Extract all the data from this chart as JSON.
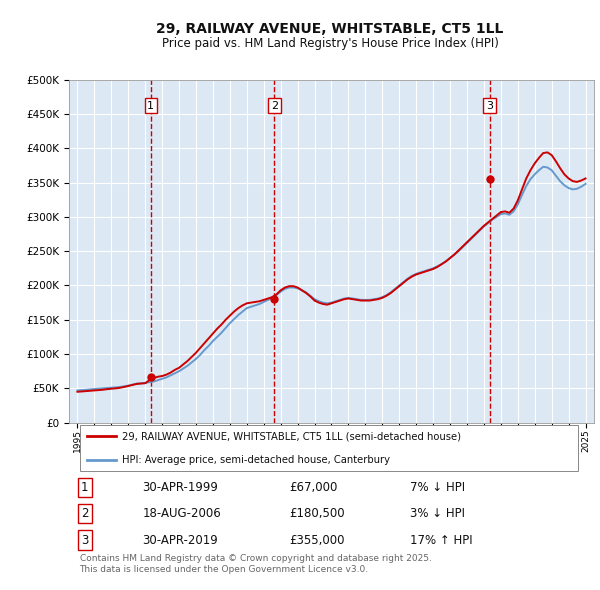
{
  "title1": "29, RAILWAY AVENUE, WHITSTABLE, CT5 1LL",
  "title2": "Price paid vs. HM Land Registry's House Price Index (HPI)",
  "legend_line1": "29, RAILWAY AVENUE, WHITSTABLE, CT5 1LL (semi-detached house)",
  "legend_line2": "HPI: Average price, semi-detached house, Canterbury",
  "footnote": "Contains HM Land Registry data © Crown copyright and database right 2025.\nThis data is licensed under the Open Government Licence v3.0.",
  "sale_dates": [
    1999.33,
    2006.63,
    2019.33
  ],
  "sale_prices": [
    67000,
    180500,
    355000
  ],
  "sale_labels": [
    "1",
    "2",
    "3"
  ],
  "sale_info": [
    [
      "1",
      "30-APR-1999",
      "£67,000",
      "7% ↓ HPI"
    ],
    [
      "2",
      "18-AUG-2006",
      "£180,500",
      "3% ↓ HPI"
    ],
    [
      "3",
      "30-APR-2019",
      "£355,000",
      "17% ↑ HPI"
    ]
  ],
  "hpi_years": [
    1995.0,
    1995.25,
    1995.5,
    1995.75,
    1996.0,
    1996.25,
    1996.5,
    1996.75,
    1997.0,
    1997.25,
    1997.5,
    1997.75,
    1998.0,
    1998.25,
    1998.5,
    1998.75,
    1999.0,
    1999.25,
    1999.5,
    1999.75,
    2000.0,
    2000.25,
    2000.5,
    2000.75,
    2001.0,
    2001.25,
    2001.5,
    2001.75,
    2002.0,
    2002.25,
    2002.5,
    2002.75,
    2003.0,
    2003.25,
    2003.5,
    2003.75,
    2004.0,
    2004.25,
    2004.5,
    2004.75,
    2005.0,
    2005.25,
    2005.5,
    2005.75,
    2006.0,
    2006.25,
    2006.5,
    2006.75,
    2007.0,
    2007.25,
    2007.5,
    2007.75,
    2008.0,
    2008.25,
    2008.5,
    2008.75,
    2009.0,
    2009.25,
    2009.5,
    2009.75,
    2010.0,
    2010.25,
    2010.5,
    2010.75,
    2011.0,
    2011.25,
    2011.5,
    2011.75,
    2012.0,
    2012.25,
    2012.5,
    2012.75,
    2013.0,
    2013.25,
    2013.5,
    2013.75,
    2014.0,
    2014.25,
    2014.5,
    2014.75,
    2015.0,
    2015.25,
    2015.5,
    2015.75,
    2016.0,
    2016.25,
    2016.5,
    2016.75,
    2017.0,
    2017.25,
    2017.5,
    2017.75,
    2018.0,
    2018.25,
    2018.5,
    2018.75,
    2019.0,
    2019.25,
    2019.5,
    2019.75,
    2020.0,
    2020.25,
    2020.5,
    2020.75,
    2021.0,
    2021.25,
    2021.5,
    2021.75,
    2022.0,
    2022.25,
    2022.5,
    2022.75,
    2023.0,
    2023.25,
    2023.5,
    2023.75,
    2024.0,
    2024.25,
    2024.5,
    2024.75,
    2025.0
  ],
  "hpi_values": [
    47000,
    47500,
    48000,
    48500,
    49000,
    49500,
    50000,
    50500,
    51000,
    51500,
    52000,
    53000,
    54000,
    55500,
    57000,
    57500,
    58000,
    59000,
    60000,
    62000,
    64000,
    66000,
    69000,
    72000,
    75000,
    79000,
    83000,
    88000,
    93000,
    99000,
    106000,
    112000,
    119000,
    125000,
    131000,
    138000,
    145000,
    151000,
    157000,
    162000,
    167000,
    169000,
    171000,
    173000,
    176000,
    179000,
    182000,
    186000,
    191000,
    195000,
    197000,
    197000,
    196000,
    193000,
    190000,
    185000,
    180000,
    177000,
    175000,
    174000,
    175000,
    177000,
    179000,
    181000,
    182000,
    181000,
    180000,
    179000,
    179000,
    179000,
    180000,
    181000,
    183000,
    186000,
    190000,
    195000,
    200000,
    205000,
    210000,
    214000,
    217000,
    219000,
    221000,
    223000,
    225000,
    228000,
    231000,
    235000,
    240000,
    245000,
    250000,
    256000,
    262000,
    268000,
    274000,
    280000,
    286000,
    291000,
    296000,
    300000,
    304000,
    305000,
    303000,
    308000,
    318000,
    332000,
    345000,
    355000,
    362000,
    368000,
    373000,
    372000,
    368000,
    360000,
    352000,
    346000,
    342000,
    340000,
    341000,
    344000,
    348000
  ],
  "prop_years": [
    1995.0,
    1995.25,
    1995.5,
    1995.75,
    1996.0,
    1996.25,
    1996.5,
    1996.75,
    1997.0,
    1997.25,
    1997.5,
    1997.75,
    1998.0,
    1998.25,
    1998.5,
    1998.75,
    1999.0,
    1999.25,
    1999.5,
    1999.75,
    2000.0,
    2000.25,
    2000.5,
    2000.75,
    2001.0,
    2001.25,
    2001.5,
    2001.75,
    2002.0,
    2002.25,
    2002.5,
    2002.75,
    2003.0,
    2003.25,
    2003.5,
    2003.75,
    2004.0,
    2004.25,
    2004.5,
    2004.75,
    2005.0,
    2005.25,
    2005.5,
    2005.75,
    2006.0,
    2006.25,
    2006.5,
    2006.75,
    2007.0,
    2007.25,
    2007.5,
    2007.75,
    2008.0,
    2008.25,
    2008.5,
    2008.75,
    2009.0,
    2009.25,
    2009.5,
    2009.75,
    2010.0,
    2010.25,
    2010.5,
    2010.75,
    2011.0,
    2011.25,
    2011.5,
    2011.75,
    2012.0,
    2012.25,
    2012.5,
    2012.75,
    2013.0,
    2013.25,
    2013.5,
    2013.75,
    2014.0,
    2014.25,
    2014.5,
    2014.75,
    2015.0,
    2015.25,
    2015.5,
    2015.75,
    2016.0,
    2016.25,
    2016.5,
    2016.75,
    2017.0,
    2017.25,
    2017.5,
    2017.75,
    2018.0,
    2018.25,
    2018.5,
    2018.75,
    2019.0,
    2019.25,
    2019.5,
    2019.75,
    2020.0,
    2020.25,
    2020.5,
    2020.75,
    2021.0,
    2021.25,
    2021.5,
    2021.75,
    2022.0,
    2022.25,
    2022.5,
    2022.75,
    2023.0,
    2023.25,
    2023.5,
    2023.75,
    2024.0,
    2024.25,
    2024.5,
    2024.75,
    2025.0
  ],
  "prop_values": [
    45000,
    45500,
    46000,
    46500,
    47000,
    47500,
    48000,
    48800,
    49500,
    50000,
    50800,
    52000,
    53500,
    55000,
    56500,
    57000,
    57500,
    62000,
    65000,
    67000,
    68000,
    70000,
    73000,
    77000,
    80000,
    85000,
    90000,
    96000,
    102000,
    109000,
    116000,
    123000,
    130000,
    137000,
    143000,
    150000,
    156000,
    162000,
    167000,
    171000,
    174000,
    175000,
    176000,
    177000,
    179000,
    181000,
    183000,
    187000,
    193000,
    197000,
    199000,
    199000,
    197000,
    193000,
    189000,
    184000,
    178000,
    175000,
    173000,
    172000,
    174000,
    176000,
    178000,
    180000,
    181000,
    180000,
    179000,
    178000,
    178000,
    178000,
    179000,
    180000,
    182000,
    185000,
    189000,
    194000,
    199000,
    204000,
    209000,
    213000,
    216000,
    218000,
    220000,
    222000,
    224000,
    227000,
    231000,
    235000,
    240000,
    245000,
    251000,
    257000,
    263000,
    269000,
    275000,
    281000,
    287000,
    292000,
    297000,
    302000,
    307000,
    308000,
    306000,
    312000,
    324000,
    340000,
    356000,
    368000,
    378000,
    386000,
    393000,
    394000,
    390000,
    381000,
    371000,
    362000,
    356000,
    352000,
    351000,
    353000,
    356000
  ],
  "fig_bg": "#ffffff",
  "plot_bg": "#dce9f5",
  "line_color_red": "#cc0000",
  "line_color_blue": "#6699cc",
  "marker_color": "#cc0000",
  "vline_color": "#cc0000",
  "grid_color": "#ffffff",
  "ylim": [
    0,
    500000
  ],
  "yticks": [
    0,
    50000,
    100000,
    150000,
    200000,
    250000,
    300000,
    350000,
    400000,
    450000,
    500000
  ],
  "xlim": [
    1994.5,
    2025.5
  ]
}
